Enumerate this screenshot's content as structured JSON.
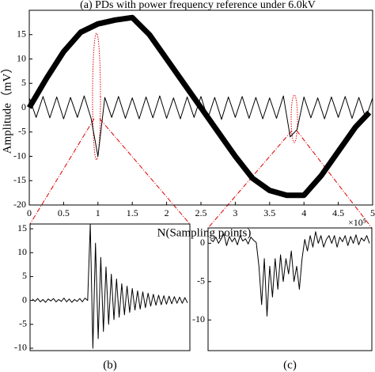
{
  "chart_data": [
    {
      "type": "line",
      "title": "(a) PDs with power frequency reference  under 6.0kV",
      "x_label": "N(Sampling points)",
      "y_label": "Amplitude（mV）",
      "x_multiplier": "×10⁵",
      "xlim": [
        0,
        5
      ],
      "xticks": [
        0,
        0.5,
        1,
        1.5,
        2,
        2.5,
        3,
        3.5,
        4,
        4.5,
        5
      ],
      "ylim": [
        -20,
        20
      ],
      "yticks": [
        -20,
        -15,
        -10,
        -5,
        0,
        5,
        10,
        15
      ],
      "series": [
        {
          "color": "#000000",
          "x": [
            0,
            0.1,
            0.2,
            0.3,
            0.4,
            0.5,
            0.6,
            0.7,
            0.8,
            0.9,
            1,
            1.1,
            1.2,
            1.3,
            1.4,
            1.5,
            1.6,
            1.7,
            1.8,
            1.9,
            2,
            2.1,
            2.2,
            2.3,
            2.4,
            2.5,
            2.6,
            2.7,
            2.8,
            2.9,
            3,
            3.1,
            3.2,
            3.3,
            3.4,
            3.5,
            3.6,
            3.7,
            3.8,
            3.9,
            4,
            4.1,
            4.2,
            4.3,
            4.4,
            4.5,
            4.6,
            4.7,
            4.8,
            4.9,
            5
          ],
          "values": [
            2,
            -2,
            2.3,
            -2.1,
            2.2,
            -2.3,
            2.1,
            -2,
            2.4,
            -2.2,
            -10,
            2.1,
            -2,
            2.3,
            -2.2,
            2,
            -2.3,
            2.2,
            -2.1,
            2.4,
            -2.2,
            2,
            -2.3,
            2.2,
            -2,
            2.3,
            -2.2,
            2.1,
            -2.4,
            2.2,
            -2,
            2.3,
            -2.2,
            2.1,
            -2.3,
            2,
            -2.2,
            2.4,
            -6,
            -4.5,
            2.2,
            -2.1,
            2,
            -2.3,
            2.2,
            -2,
            2.3,
            -2.2,
            2.1,
            -2.2,
            2
          ],
          "width": 1
        },
        {
          "color": "#000000",
          "x": [
            0,
            0.25,
            0.5,
            0.75,
            1,
            1.25,
            1.5,
            1.75,
            2,
            2.25,
            2.5,
            2.75,
            3,
            3.25,
            3.5,
            3.75,
            4,
            4.25,
            4.5,
            4.75,
            4.95
          ],
          "values": [
            0,
            6,
            11.5,
            15.5,
            17.2,
            18,
            18.5,
            15,
            10,
            5,
            0,
            -5,
            -10,
            -14.5,
            -17,
            -18,
            -18,
            -14,
            -9,
            -4,
            -1
          ],
          "width": 7
        }
      ]
    },
    {
      "type": "line",
      "label": "(b)",
      "ylim": [
        -10.5,
        16
      ],
      "yticks": [
        -10,
        -5,
        0,
        5,
        10,
        15
      ],
      "series": [
        {
          "color": "#000000",
          "width": 1,
          "values": [
            0.3,
            -0.2,
            0.4,
            -0.3,
            0.2,
            -0.4,
            0.3,
            -0.1,
            0.4,
            -0.3,
            0.2,
            -0.2,
            0.5,
            -0.3,
            0.3,
            -0.4,
            0.2,
            -0.2,
            0.4,
            -0.3,
            0.5,
            0,
            16,
            -10,
            12,
            -8,
            9,
            -6.5,
            7,
            -5,
            5.5,
            -4,
            4.5,
            -3.5,
            3.5,
            -3,
            3,
            -2.5,
            2.5,
            -2,
            2,
            -1.8,
            1.8,
            -1.5,
            1.5,
            -1.2,
            1.3,
            -1,
            1.1,
            -0.9,
            1,
            -0.8,
            0.9,
            -0.7,
            0.8,
            -0.6,
            0.7,
            -0.6,
            0.6,
            -0.5
          ]
        }
      ]
    },
    {
      "type": "line",
      "label": "(c)",
      "ylim": [
        -14,
        2
      ],
      "yticks": [
        -10,
        -5,
        0
      ],
      "series": [
        {
          "color": "#000000",
          "width": 1,
          "values": [
            0.5,
            0.2,
            0.8,
            0,
            0.6,
            1.2,
            -0.3,
            0.9,
            0.2,
            0.7,
            -0.2,
            1,
            0.3,
            0.6,
            -0.1,
            0.8,
            0.4,
            0.1,
            -3,
            -8,
            -2,
            -9.5,
            -3,
            -7,
            -2,
            -6,
            -1.5,
            -5,
            -2,
            -4,
            -1,
            -5,
            -3,
            -6,
            -2,
            0.5,
            -1,
            1,
            -0.5,
            1.5,
            0,
            1,
            -0.5,
            0.5,
            1,
            0,
            1,
            -0.5,
            0.8,
            0.2,
            1,
            -0.3,
            0.9,
            0,
            1.1,
            -0.2,
            0.7,
            0.3,
            1,
            0
          ]
        }
      ]
    }
  ]
}
